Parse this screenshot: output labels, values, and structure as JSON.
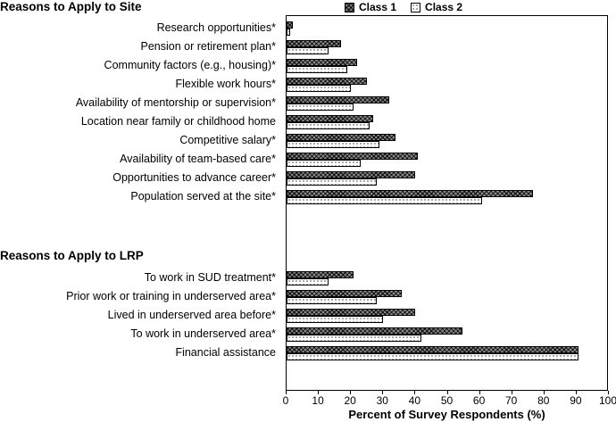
{
  "chart_data": {
    "type": "bar",
    "orientation": "horizontal",
    "xlabel": "Percent of Survey Respondents (%)",
    "xlim": [
      0,
      100
    ],
    "xticks": [
      0,
      10,
      20,
      30,
      40,
      50,
      60,
      70,
      80,
      90,
      100
    ],
    "legend": [
      "Class 1",
      "Class 2"
    ],
    "grid": false,
    "legend_position": "top",
    "colors": {
      "class1": "#595959",
      "class2": "#ffffff",
      "border": "#000000"
    },
    "sections": [
      {
        "title": "Reasons to Apply to Site",
        "rows": [
          {
            "label": "Research opportunities*",
            "class1": 2,
            "class2": 1
          },
          {
            "label": "Pension or retirement plan*",
            "class1": 17,
            "class2": 13
          },
          {
            "label": "Community factors (e.g., housing)*",
            "class1": 22,
            "class2": 19
          },
          {
            "label": "Flexible work hours*",
            "class1": 25,
            "class2": 20
          },
          {
            "label": "Availability of mentorship or supervision*",
            "class1": 32,
            "class2": 21
          },
          {
            "label": "Location near family or childhood home",
            "class1": 27,
            "class2": 26
          },
          {
            "label": "Competitive salary*",
            "class1": 34,
            "class2": 29
          },
          {
            "label": "Availability of team-based care*",
            "class1": 41,
            "class2": 23
          },
          {
            "label": "Opportunities to advance career*",
            "class1": 40,
            "class2": 28
          },
          {
            "label": "Population served at the site*",
            "class1": 77,
            "class2": 61
          }
        ]
      },
      {
        "title": "Reasons to Apply to LRP",
        "rows": [
          {
            "label": "To work in SUD treatment*",
            "class1": 21,
            "class2": 13
          },
          {
            "label": "Prior work or training in underserved area*",
            "class1": 36,
            "class2": 28
          },
          {
            "label": "Lived in underserved area before*",
            "class1": 40,
            "class2": 30
          },
          {
            "label": "To work in underserved area*",
            "class1": 55,
            "class2": 42
          },
          {
            "label": "Financial assistance",
            "class1": 91,
            "class2": 91
          }
        ]
      }
    ]
  }
}
